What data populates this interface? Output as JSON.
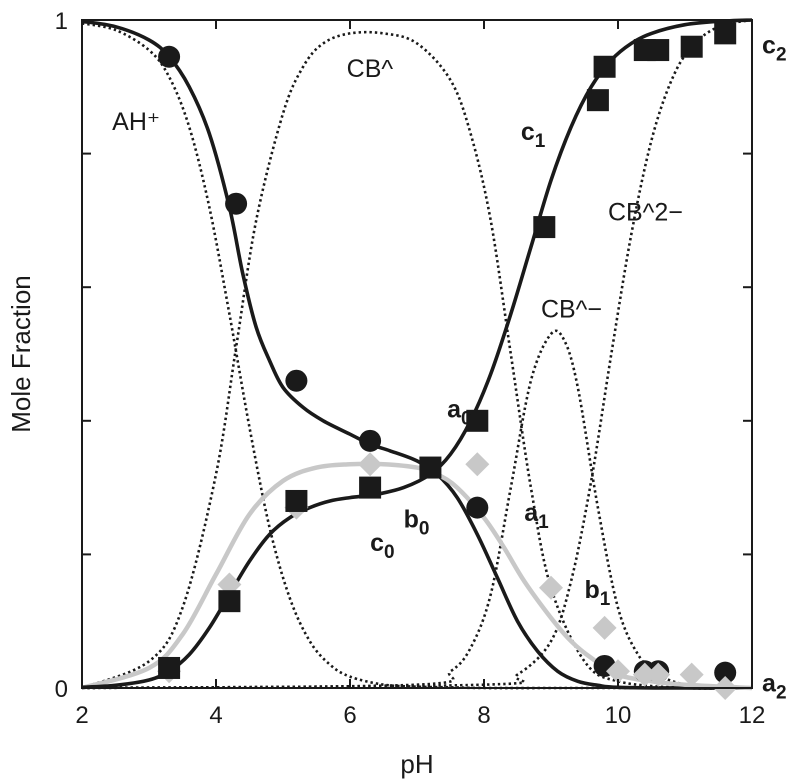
{
  "chart_data": {
    "type": "line",
    "title": "",
    "xlabel": "pH",
    "ylabel": "Mole Fraction",
    "xlim": [
      2,
      12
    ],
    "ylim": [
      0,
      1
    ],
    "grid": false,
    "x_ticks": [
      2,
      4,
      6,
      8,
      10,
      12
    ],
    "x_tick_labels": [
      "2",
      "4",
      "6",
      "8",
      "10",
      "12"
    ],
    "y_tick_labels": [
      {
        "value": 0,
        "label": "0"
      },
      {
        "value": 1,
        "label": "1"
      }
    ],
    "colors": {
      "dark": "#1a1a1a",
      "light": "#c8c8c8"
    },
    "species_curves": [
      {
        "name": "AH⁺",
        "style": "dotted",
        "x": [
          2.0,
          2.5,
          3.0,
          3.3,
          3.6,
          3.9,
          4.2,
          4.5,
          4.8,
          5.1,
          5.4,
          5.7,
          6.0,
          6.5,
          7.0,
          7.5,
          8.0,
          9.0,
          10.0,
          12.0
        ],
        "y": [
          0.995,
          0.985,
          0.955,
          0.915,
          0.84,
          0.72,
          0.56,
          0.39,
          0.24,
          0.135,
          0.07,
          0.035,
          0.017,
          0.005,
          0.002,
          0.001,
          0.0,
          0.0,
          0.0,
          0.0
        ]
      },
      {
        "name": "CB^",
        "style": "dotted",
        "x": [
          2.0,
          3.0,
          3.5,
          4.0,
          4.3,
          4.6,
          5.0,
          5.3,
          5.6,
          6.0,
          6.5,
          7.0,
          7.5,
          7.8,
          8.1,
          8.4,
          8.7,
          9.0,
          9.5,
          10.0,
          11.0,
          12.0
        ],
        "y": [
          0.0,
          0.04,
          0.12,
          0.32,
          0.51,
          0.7,
          0.86,
          0.93,
          0.965,
          0.98,
          0.98,
          0.965,
          0.91,
          0.83,
          0.7,
          0.5,
          0.3,
          0.15,
          0.04,
          0.01,
          0.0,
          0.0
        ]
      },
      {
        "name": "CB^−",
        "style": "dotted",
        "x": [
          2.0,
          7.0,
          7.5,
          7.8,
          8.1,
          8.4,
          8.7,
          9.0,
          9.2,
          9.4,
          9.7,
          10.0,
          10.3,
          10.6,
          11.0,
          11.5,
          12.0
        ],
        "y": [
          0.0,
          0.005,
          0.025,
          0.06,
          0.14,
          0.3,
          0.46,
          0.53,
          0.52,
          0.45,
          0.27,
          0.12,
          0.05,
          0.02,
          0.005,
          0.0,
          0.0
        ]
      },
      {
        "name": "CB^2−",
        "style": "dotted",
        "x": [
          2.0,
          8.0,
          8.5,
          9.0,
          9.3,
          9.6,
          9.9,
          10.2,
          10.5,
          10.8,
          11.1,
          11.5,
          12.0
        ],
        "y": [
          0.0,
          0.005,
          0.02,
          0.07,
          0.16,
          0.31,
          0.5,
          0.68,
          0.82,
          0.91,
          0.96,
          0.99,
          1.0
        ]
      }
    ],
    "fitted_curves": [
      {
        "name": "a",
        "color": "#1a1a1a",
        "x": [
          2.0,
          2.5,
          3.0,
          3.3,
          3.6,
          3.9,
          4.2,
          4.4,
          4.6,
          4.8,
          5.0,
          5.3,
          5.6,
          6.0,
          6.3,
          6.6,
          7.0,
          7.3,
          7.6,
          7.9,
          8.2,
          8.5,
          8.8,
          9.1,
          9.4,
          9.7,
          10.0,
          11.0,
          12.0
        ],
        "y": [
          0.998,
          0.99,
          0.97,
          0.945,
          0.9,
          0.83,
          0.72,
          0.62,
          0.54,
          0.49,
          0.45,
          0.42,
          0.4,
          0.38,
          0.365,
          0.355,
          0.34,
          0.32,
          0.285,
          0.23,
          0.165,
          0.1,
          0.055,
          0.025,
          0.01,
          0.004,
          0.001,
          0.0,
          0.0
        ]
      },
      {
        "name": "b",
        "color": "#c8c8c8",
        "x": [
          2.0,
          3.0,
          3.5,
          4.0,
          4.5,
          5.0,
          5.5,
          6.0,
          6.5,
          7.0,
          7.3,
          7.6,
          8.0,
          8.3,
          8.6,
          9.0,
          9.3,
          9.6,
          10.0,
          10.5,
          11.0,
          12.0
        ],
        "y": [
          0.0,
          0.03,
          0.08,
          0.17,
          0.26,
          0.31,
          0.33,
          0.335,
          0.335,
          0.33,
          0.32,
          0.3,
          0.255,
          0.21,
          0.16,
          0.105,
          0.07,
          0.045,
          0.02,
          0.01,
          0.005,
          0.0
        ]
      },
      {
        "name": "c",
        "color": "#1a1a1a",
        "x": [
          2.0,
          2.5,
          3.0,
          3.3,
          3.6,
          3.9,
          4.2,
          4.5,
          4.8,
          5.1,
          5.4,
          5.7,
          6.0,
          6.4,
          6.8,
          7.2,
          7.5,
          7.8,
          8.1,
          8.4,
          8.7,
          9.0,
          9.3,
          9.6,
          9.9,
          10.2,
          10.5,
          11.0,
          11.5,
          12.0
        ],
        "y": [
          0.001,
          0.004,
          0.012,
          0.025,
          0.05,
          0.09,
          0.14,
          0.19,
          0.23,
          0.255,
          0.27,
          0.28,
          0.285,
          0.29,
          0.3,
          0.32,
          0.35,
          0.4,
          0.47,
          0.56,
          0.66,
          0.76,
          0.84,
          0.9,
          0.94,
          0.965,
          0.98,
          0.993,
          0.998,
          1.0
        ]
      }
    ],
    "markers": [
      {
        "name": "a",
        "shape": "circle",
        "color": "#1a1a1a",
        "x": [
          3.3,
          4.3,
          5.2,
          6.3,
          7.9,
          9.8,
          10.4,
          10.6,
          11.6
        ],
        "y": [
          0.945,
          0.725,
          0.46,
          0.37,
          0.27,
          0.033,
          0.025,
          0.025,
          0.023
        ]
      },
      {
        "name": "b",
        "shape": "diamond",
        "color": "#c8c8c8",
        "x": [
          3.3,
          4.2,
          5.2,
          6.3,
          7.9,
          9.0,
          9.8,
          10.0,
          10.4,
          10.6,
          11.1,
          11.6
        ],
        "y": [
          0.025,
          0.155,
          0.27,
          0.335,
          0.335,
          0.15,
          0.09,
          0.025,
          0.02,
          0.02,
          0.02,
          0.0
        ]
      },
      {
        "name": "c",
        "shape": "square",
        "color": "#1a1a1a",
        "x": [
          3.3,
          4.2,
          5.2,
          6.3,
          7.2,
          7.9,
          8.9,
          9.7,
          9.8,
          10.4,
          10.6,
          11.1,
          11.6
        ],
        "y": [
          0.03,
          0.13,
          0.28,
          0.3,
          0.33,
          0.4,
          0.69,
          0.88,
          0.93,
          0.955,
          0.955,
          0.96,
          0.98
        ]
      }
    ],
    "annotations": [
      {
        "text": "AH⁺",
        "x": 2.45,
        "y": 0.835,
        "weight": "normal",
        "color": "#1a1a1a"
      },
      {
        "text": "CB^",
        "x": 5.95,
        "y": 0.915,
        "weight": "normal",
        "color": "#1a1a1a"
      },
      {
        "text": "CB^−",
        "x": 8.85,
        "y": 0.555,
        "weight": "normal",
        "color": "#1a1a1a"
      },
      {
        "text": "CB^2−",
        "x": 9.85,
        "y": 0.7,
        "weight": "normal",
        "color": "#1a1a1a"
      },
      {
        "text": "a",
        "sub": "0",
        "x": 7.45,
        "y": 0.405,
        "weight": "bold",
        "color": "#1a1a1a"
      },
      {
        "text": "a",
        "sub": "1",
        "x": 8.6,
        "y": 0.25,
        "weight": "bold",
        "color": "#1a1a1a"
      },
      {
        "text": "a",
        "sub": "2",
        "x": 12.15,
        "y": -0.005,
        "weight": "bold",
        "color": "#1a1a1a"
      },
      {
        "text": "b",
        "sub": "0",
        "x": 6.8,
        "y": 0.24,
        "weight": "bold",
        "color": "#c8c8c8"
      },
      {
        "text": "b",
        "sub": "1",
        "x": 9.5,
        "y": 0.135,
        "weight": "bold",
        "color": "#c8c8c8"
      },
      {
        "text": "c",
        "sub": "0",
        "x": 6.3,
        "y": 0.205,
        "weight": "bold",
        "color": "#1a1a1a"
      },
      {
        "text": "c",
        "sub": "1",
        "x": 8.55,
        "y": 0.82,
        "weight": "bold",
        "color": "#1a1a1a"
      },
      {
        "text": "c",
        "sub": "2",
        "x": 12.15,
        "y": 0.95,
        "weight": "bold",
        "color": "#1a1a1a"
      }
    ]
  }
}
